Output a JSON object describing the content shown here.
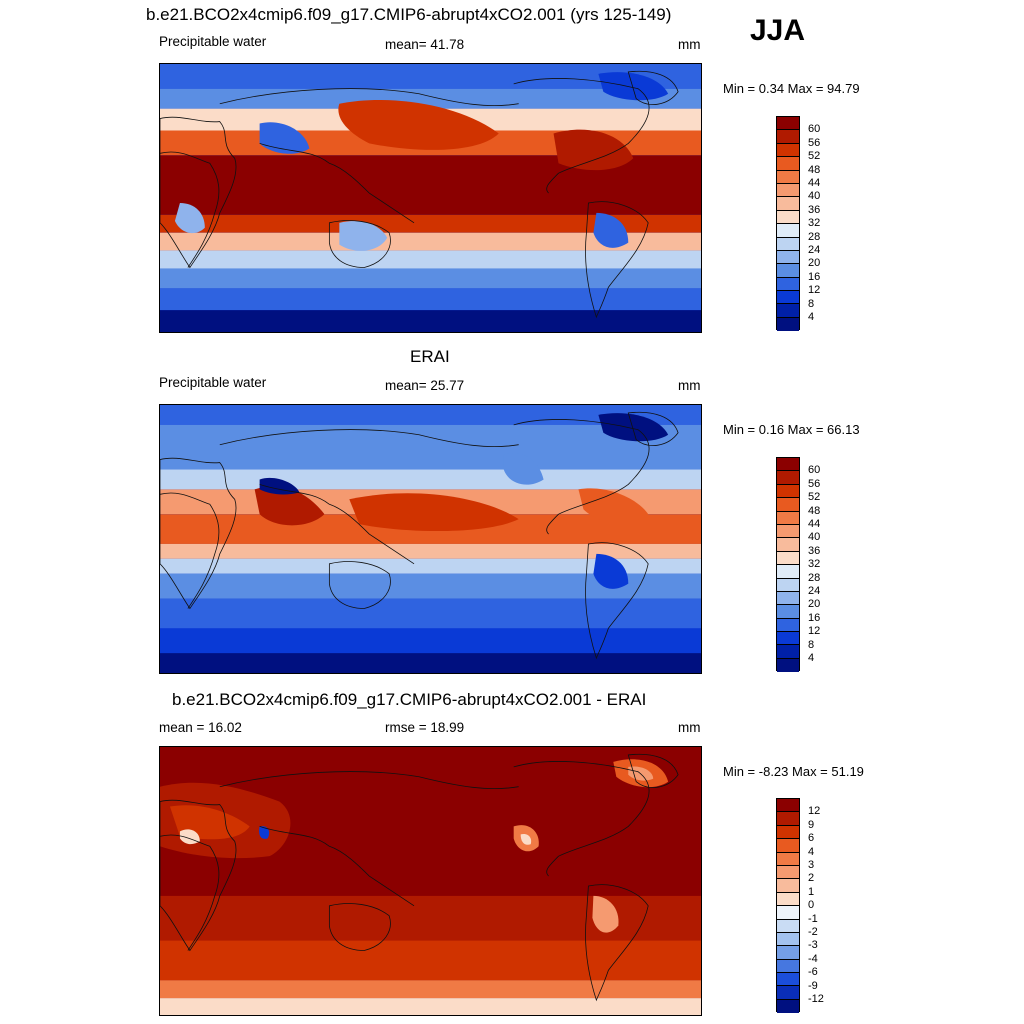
{
  "season": "JJA",
  "panels": [
    {
      "title": "b.e21.BCO2x4cmip6.f09_g17.CMIP6-abrupt4xCO2.001 (yrs 125-149)",
      "left_label": "Precipitable water",
      "center_label": "mean=  41.78",
      "right_label": "mm",
      "minmax": "Min =   0.34 Max =  94.79",
      "colorbar": {
        "levels": [
          "60",
          "56",
          "52",
          "48",
          "44",
          "40",
          "36",
          "32",
          "28",
          "24",
          "20",
          "16",
          "12",
          "8",
          "4"
        ],
        "colors": [
          "#8b0000",
          "#b01a00",
          "#d03300",
          "#e85a20",
          "#f07a45",
          "#f59a70",
          "#f8bb9c",
          "#fbdcc8",
          "#e0ecf8",
          "#bdd4f2",
          "#8fb3ec",
          "#5b8ee3",
          "#2f63e0",
          "#0a3ad6",
          "#0020a8",
          "#001080"
        ]
      },
      "field": "model"
    },
    {
      "title": "ERAI",
      "left_label": "Precipitable water",
      "center_label": "mean=  25.77",
      "right_label": "mm",
      "minmax": "Min =   0.16 Max =  66.13",
      "colorbar": {
        "levels": [
          "60",
          "56",
          "52",
          "48",
          "44",
          "40",
          "36",
          "32",
          "28",
          "24",
          "20",
          "16",
          "12",
          "8",
          "4"
        ],
        "colors": [
          "#8b0000",
          "#b01a00",
          "#d03300",
          "#e85a20",
          "#f07a45",
          "#f59a70",
          "#f8bb9c",
          "#fbdcc8",
          "#e0ecf8",
          "#bdd4f2",
          "#8fb3ec",
          "#5b8ee3",
          "#2f63e0",
          "#0a3ad6",
          "#0020a8",
          "#001080"
        ]
      },
      "field": "obs"
    },
    {
      "title": "b.e21.BCO2x4cmip6.f09_g17.CMIP6-abrupt4xCO2.001 - ERAI",
      "left_label": "mean =  16.02",
      "center_label": "rmse =  18.99",
      "right_label": "mm",
      "minmax": "Min =  -8.23 Max =  51.19",
      "colorbar": {
        "levels": [
          "12",
          "9",
          "6",
          "4",
          "3",
          "2",
          "1",
          "0",
          "-1",
          "-2",
          "-3",
          "-4",
          "-6",
          "-9",
          "-12"
        ],
        "colors": [
          "#8b0000",
          "#b01a00",
          "#d03300",
          "#e85a20",
          "#f07a45",
          "#f59a70",
          "#f8bb9c",
          "#fbdcc8",
          "#eef4fb",
          "#c9dcf4",
          "#a3c2ef",
          "#759fe7",
          "#4677e0",
          "#1b4edb",
          "#0a2eb8",
          "#001080"
        ]
      },
      "field": "diff"
    }
  ]
}
